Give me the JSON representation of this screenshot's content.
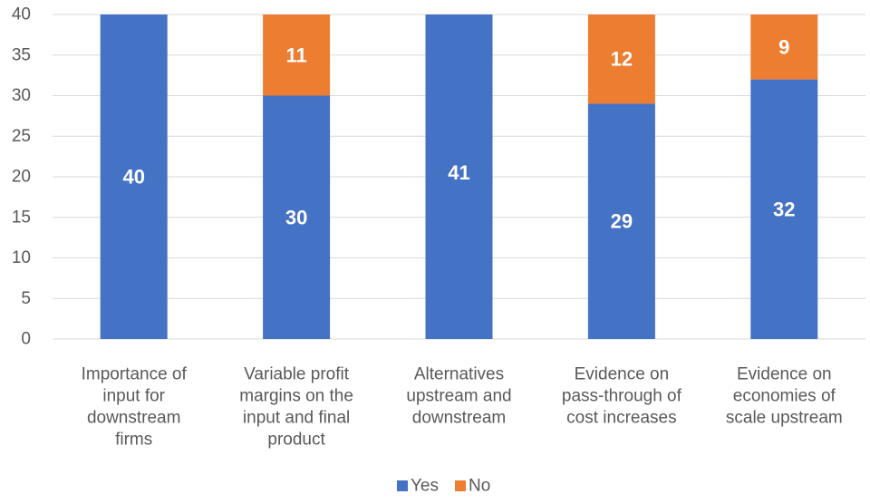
{
  "chart_data": {
    "type": "bar",
    "stacked": true,
    "categories": [
      [
        "Importance of",
        "input for",
        "downstream",
        "firms"
      ],
      [
        "Variable profit",
        "margins on the",
        "input and final",
        "product"
      ],
      [
        "Alternatives",
        "upstream and",
        "downstream"
      ],
      [
        "Evidence on",
        "pass-through of",
        "cost increases"
      ],
      [
        "Evidence on",
        "economies of",
        "scale upstream"
      ]
    ],
    "series": [
      {
        "name": "Yes",
        "color": "#4472C4",
        "values": [
          40,
          30,
          41,
          29,
          32
        ]
      },
      {
        "name": "No",
        "color": "#ED7D31",
        "values": [
          0,
          11,
          0,
          12,
          9
        ]
      }
    ],
    "data_labels": {
      "Yes": [
        "40",
        "30",
        "41",
        "29",
        "32"
      ],
      "No": [
        "",
        "11",
        "",
        "12",
        "9"
      ]
    },
    "ylim": [
      0,
      40
    ],
    "yticks": [
      "0",
      "5",
      "10",
      "15",
      "20",
      "25",
      "30",
      "35",
      "40"
    ],
    "grid": true,
    "gridline_color": "#D9D9D9",
    "legend_position": "bottom",
    "title": "",
    "xlabel": "",
    "ylabel": ""
  }
}
